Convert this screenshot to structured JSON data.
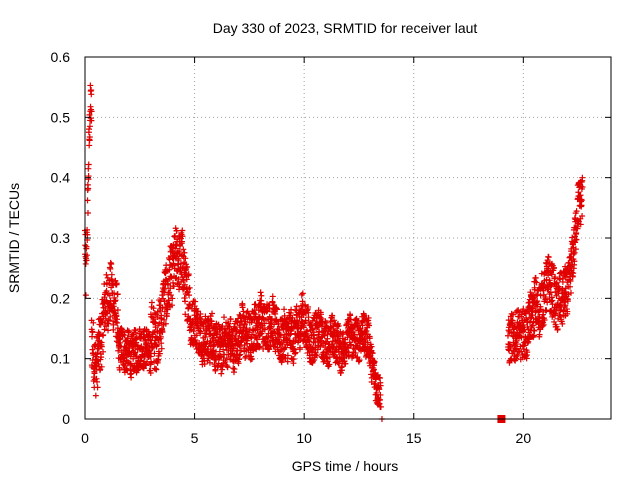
{
  "chart_data": {
    "type": "scatter",
    "title": "Day 330 of 2023, SRMTID for receiver laut",
    "xlabel": "GPS time / hours",
    "ylabel": "SRMTID / TECUs",
    "xlim": [
      0,
      24
    ],
    "ylim": [
      0,
      0.6
    ],
    "x_ticks": [
      0,
      5,
      10,
      15,
      20
    ],
    "x_tick_labels": [
      "0",
      "5",
      "10",
      "15",
      "20"
    ],
    "y_ticks": [
      0,
      0.1,
      0.2,
      0.3,
      0.4,
      0.5,
      0.6
    ],
    "y_tick_labels": [
      "0",
      "0.1",
      "0.2",
      "0.3",
      "0.4",
      "0.5",
      "0.6"
    ],
    "grid": true,
    "marker": "plus",
    "color": "#e00000",
    "series": [
      {
        "name": "SRMTID",
        "segments": [
          {
            "x_start": 0.0,
            "x_end": 0.3,
            "baseline": [
              0.3,
              0.22,
              0.28,
              0.35,
              0.43,
              0.49,
              0.52,
              0.5
            ],
            "spread": 0.04
          },
          {
            "x_start": 0.3,
            "x_end": 1.5,
            "baseline": [
              0.12,
              0.1,
              0.14,
              0.2,
              0.22,
              0.15
            ],
            "spread": 0.05
          },
          {
            "x_start": 1.5,
            "x_end": 3.0,
            "baseline": [
              0.11,
              0.12,
              0.1,
              0.13,
              0.1
            ],
            "spread": 0.035
          },
          {
            "x_start": 3.0,
            "x_end": 4.8,
            "baseline": [
              0.13,
              0.15,
              0.2,
              0.27,
              0.25,
              0.2
            ],
            "spread": 0.05
          },
          {
            "x_start": 4.8,
            "x_end": 8.0,
            "baseline": [
              0.16,
              0.13,
              0.12,
              0.14,
              0.15
            ],
            "spread": 0.04
          },
          {
            "x_start": 8.0,
            "x_end": 10.5,
            "baseline": [
              0.17,
              0.15,
              0.13,
              0.16,
              0.13
            ],
            "spread": 0.04
          },
          {
            "x_start": 10.5,
            "x_end": 13.0,
            "baseline": [
              0.14,
              0.13,
              0.12,
              0.14,
              0.13
            ],
            "spread": 0.035
          },
          {
            "x_start": 13.0,
            "x_end": 13.5,
            "baseline": [
              0.12,
              0.08,
              0.05,
              0.03
            ],
            "spread": 0.03
          },
          {
            "x_start": 19.3,
            "x_end": 20.5,
            "baseline": [
              0.14,
              0.13,
              0.15,
              0.17
            ],
            "spread": 0.04
          },
          {
            "x_start": 20.5,
            "x_end": 22.0,
            "baseline": [
              0.18,
              0.2,
              0.22,
              0.19,
              0.2
            ],
            "spread": 0.045
          },
          {
            "x_start": 22.0,
            "x_end": 22.7,
            "baseline": [
              0.22,
              0.25,
              0.3,
              0.35,
              0.37
            ],
            "spread": 0.04
          }
        ],
        "isolated_points": [
          [
            13.55,
            0.0
          ]
        ],
        "gap_marker": {
          "x": 19.0,
          "y": 0.0
        }
      }
    ]
  }
}
